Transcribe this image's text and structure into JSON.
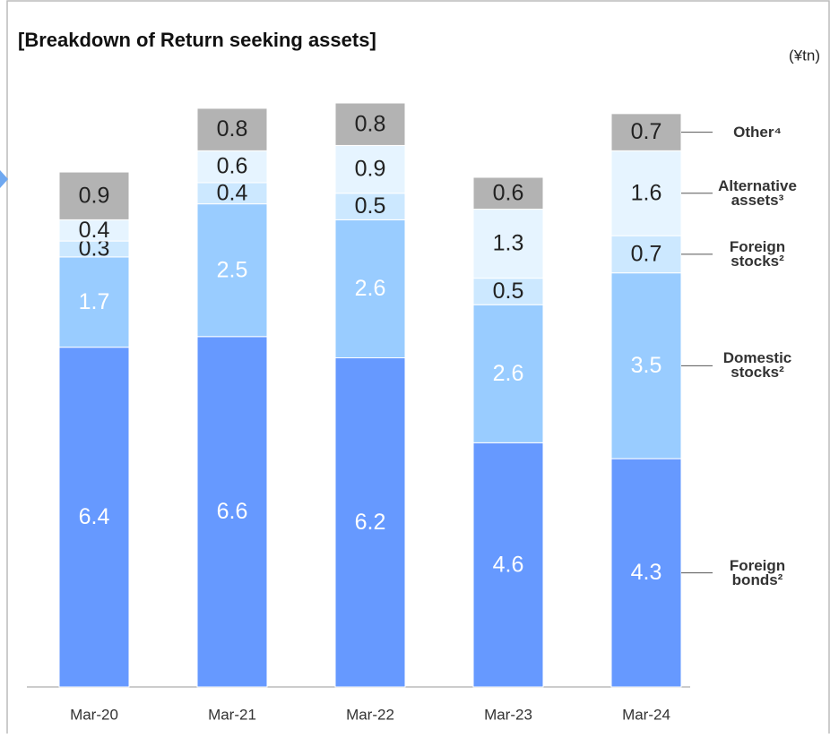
{
  "chart_data": {
    "type": "stacked_bar",
    "title": "[Breakdown of Return seeking assets]",
    "unit": "(¥tn)",
    "categories": [
      "Mar-20",
      "Mar-21",
      "Mar-22",
      "Mar-23",
      "Mar-24"
    ],
    "series": [
      {
        "name": "Foreign bonds²",
        "color": "#6699ff",
        "values": [
          6.4,
          6.6,
          6.2,
          4.6,
          4.3
        ]
      },
      {
        "name": "Domestic stocks²",
        "color": "#99ccff",
        "values": [
          1.7,
          2.5,
          2.6,
          2.6,
          3.5
        ]
      },
      {
        "name": "Foreign stocks²",
        "color": "#cce8ff",
        "values": [
          0.3,
          0.4,
          0.5,
          0.5,
          0.7
        ]
      },
      {
        "name": "Alternative assets³",
        "color": "#e6f4ff",
        "values": [
          0.4,
          0.6,
          0.9,
          1.3,
          1.6
        ]
      },
      {
        "name": "Other⁴",
        "color": "#b3b3b3",
        "values": [
          0.9,
          0.8,
          0.8,
          0.6,
          0.7
        ]
      }
    ]
  }
}
